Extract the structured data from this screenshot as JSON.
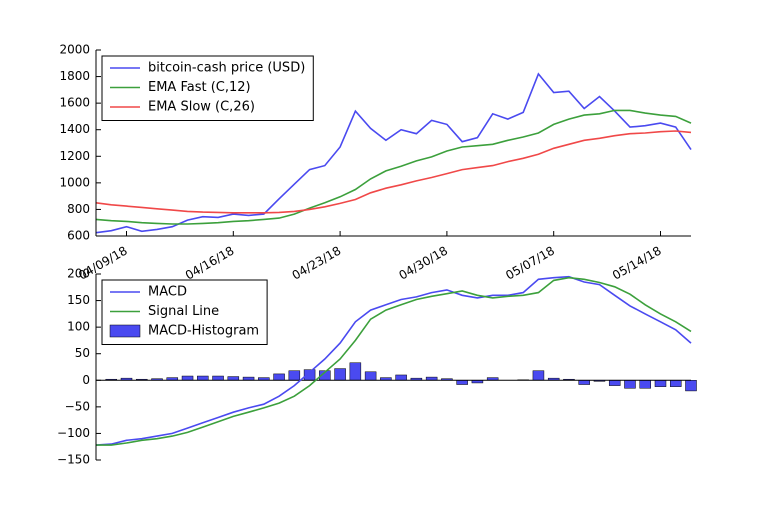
{
  "chart_data": [
    {
      "type": "line",
      "x": [
        "2018-04-07",
        "2018-04-08",
        "2018-04-09",
        "2018-04-10",
        "2018-04-11",
        "2018-04-12",
        "2018-04-13",
        "2018-04-14",
        "2018-04-15",
        "2018-04-16",
        "2018-04-17",
        "2018-04-18",
        "2018-04-19",
        "2018-04-20",
        "2018-04-21",
        "2018-04-22",
        "2018-04-23",
        "2018-04-24",
        "2018-04-25",
        "2018-04-26",
        "2018-04-27",
        "2018-04-28",
        "2018-04-29",
        "2018-04-30",
        "2018-05-01",
        "2018-05-02",
        "2018-05-03",
        "2018-05-04",
        "2018-05-05",
        "2018-05-06",
        "2018-05-07",
        "2018-05-08",
        "2018-05-09",
        "2018-05-10",
        "2018-05-11",
        "2018-05-12",
        "2018-05-13",
        "2018-05-14",
        "2018-05-15",
        "2018-05-16"
      ],
      "series": [
        {
          "name": "bitcoin-cash price (USD)",
          "color": "#4a4af0",
          "values": [
            625,
            640,
            670,
            635,
            650,
            670,
            720,
            745,
            740,
            765,
            755,
            765,
            880,
            990,
            1100,
            1130,
            1270,
            1540,
            1410,
            1320,
            1400,
            1370,
            1470,
            1440,
            1310,
            1340,
            1520,
            1480,
            1530,
            1820,
            1680,
            1690,
            1560,
            1650,
            1540,
            1420,
            1430,
            1450,
            1420,
            1250
          ]
        },
        {
          "name": "EMA Fast (C,12)",
          "color": "#3ca03c",
          "values": [
            725,
            715,
            710,
            700,
            695,
            690,
            690,
            695,
            700,
            710,
            715,
            725,
            735,
            765,
            810,
            850,
            895,
            950,
            1030,
            1090,
            1125,
            1165,
            1195,
            1240,
            1270,
            1280,
            1290,
            1320,
            1345,
            1375,
            1440,
            1480,
            1510,
            1520,
            1545,
            1545,
            1525,
            1510,
            1500,
            1450
          ]
        },
        {
          "name": "EMA Slow (C,26)",
          "color": "#f04848",
          "values": [
            850,
            835,
            825,
            815,
            805,
            795,
            785,
            780,
            778,
            775,
            775,
            775,
            778,
            785,
            800,
            820,
            845,
            875,
            925,
            960,
            985,
            1015,
            1040,
            1070,
            1100,
            1115,
            1130,
            1160,
            1185,
            1215,
            1260,
            1290,
            1320,
            1335,
            1355,
            1370,
            1375,
            1385,
            1390,
            1380
          ]
        }
      ],
      "xlim": [
        "2018-04-07",
        "2018-05-16"
      ],
      "xticks": [
        {
          "value": "2018-04-09",
          "label": "04/09/18"
        },
        {
          "value": "2018-04-16",
          "label": "04/16/18"
        },
        {
          "value": "2018-04-23",
          "label": "04/23/18"
        },
        {
          "value": "2018-04-30",
          "label": "04/30/18"
        },
        {
          "value": "2018-05-07",
          "label": "05/07/18"
        },
        {
          "value": "2018-05-14",
          "label": "05/14/18"
        }
      ],
      "ylim": [
        600,
        2000
      ],
      "yticks": [
        600,
        800,
        1000,
        1200,
        1400,
        1600,
        1800,
        2000
      ],
      "legend": "upper left"
    },
    {
      "type": "line",
      "x": [
        "2018-04-07",
        "2018-04-08",
        "2018-04-09",
        "2018-04-10",
        "2018-04-11",
        "2018-04-12",
        "2018-04-13",
        "2018-04-14",
        "2018-04-15",
        "2018-04-16",
        "2018-04-17",
        "2018-04-18",
        "2018-04-19",
        "2018-04-20",
        "2018-04-21",
        "2018-04-22",
        "2018-04-23",
        "2018-04-24",
        "2018-04-25",
        "2018-04-26",
        "2018-04-27",
        "2018-04-28",
        "2018-04-29",
        "2018-04-30",
        "2018-05-01",
        "2018-05-02",
        "2018-05-03",
        "2018-05-04",
        "2018-05-05",
        "2018-05-06",
        "2018-05-07",
        "2018-05-08",
        "2018-05-09",
        "2018-05-10",
        "2018-05-11",
        "2018-05-12",
        "2018-05-13",
        "2018-05-14",
        "2018-05-15",
        "2018-05-16"
      ],
      "series": [
        {
          "name": "MACD",
          "type": "line",
          "color": "#4a4af0",
          "values": [
            -122,
            -120,
            -113,
            -110,
            -105,
            -100,
            -90,
            -80,
            -70,
            -60,
            -52,
            -45,
            -30,
            -10,
            15,
            40,
            70,
            110,
            132,
            142,
            152,
            157,
            165,
            170,
            160,
            155,
            160,
            160,
            165,
            190,
            193,
            195,
            185,
            180,
            160,
            140,
            125,
            110,
            95,
            70
          ]
        },
        {
          "name": "Signal Line",
          "type": "line",
          "color": "#3ca03c",
          "values": [
            -122,
            -122,
            -118,
            -113,
            -110,
            -105,
            -98,
            -88,
            -78,
            -68,
            -60,
            -52,
            -43,
            -30,
            -10,
            15,
            40,
            75,
            115,
            132,
            142,
            152,
            158,
            163,
            168,
            160,
            155,
            158,
            160,
            165,
            188,
            193,
            190,
            184,
            176,
            162,
            142,
            125,
            110,
            92
          ]
        },
        {
          "name": "MACD-Histogram",
          "type": "bar",
          "color": "#4a4af0",
          "values": [
            0,
            2,
            4,
            2,
            3,
            5,
            8,
            8,
            8,
            7,
            6,
            5,
            12,
            18,
            20,
            18,
            22,
            33,
            16,
            5,
            10,
            4,
            6,
            3,
            -8,
            -5,
            5,
            0,
            1,
            18,
            4,
            2,
            -8,
            -2,
            -10,
            -15,
            -15,
            -12,
            -12,
            -20
          ]
        }
      ],
      "xlim": [
        "2018-04-07",
        "2018-05-16"
      ],
      "ylim": [
        -150,
        200
      ],
      "yticks": [
        {
          "value": -150,
          "label": "−150"
        },
        {
          "value": -100,
          "label": "−100"
        },
        {
          "value": -50,
          "label": "−50"
        },
        0,
        50,
        100,
        150,
        200
      ],
      "legend": "upper left"
    }
  ]
}
